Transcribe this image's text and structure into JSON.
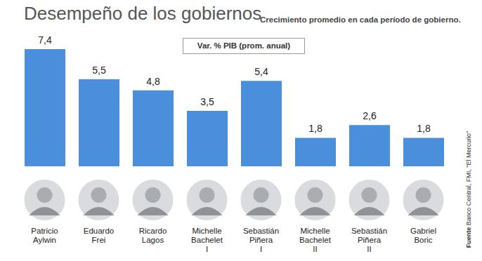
{
  "chart_data": {
    "type": "bar",
    "title": "Desempeño de los gobiernos",
    "subtitle": "Crecimiento promedio en cada período de gobierno.",
    "y_label": "Var. % PIB (prom. anual)",
    "source": "Fuente Banco Central, FMI, \"El Mercurio\"",
    "categories": [
      "Patricio Aylwin",
      "Eduardo Frei",
      "Ricardo Lagos",
      "Michelle Bachelet I",
      "Sebastián Piñera I",
      "Michelle Bachelet II",
      "Sebastián Piñera II",
      "Gabriel Boric"
    ],
    "values": [
      7.4,
      5.5,
      4.8,
      3.5,
      5.4,
      1.8,
      2.6,
      1.8
    ],
    "value_labels": [
      "7,4",
      "5,5",
      "4,8",
      "3,5",
      "5,4",
      "1,8",
      "2,6",
      "1,8"
    ],
    "color": "#4a8fdb",
    "ylim": [
      0,
      7.4
    ],
    "data_labels": true,
    "tick_labels": "x",
    "grid": false
  }
}
